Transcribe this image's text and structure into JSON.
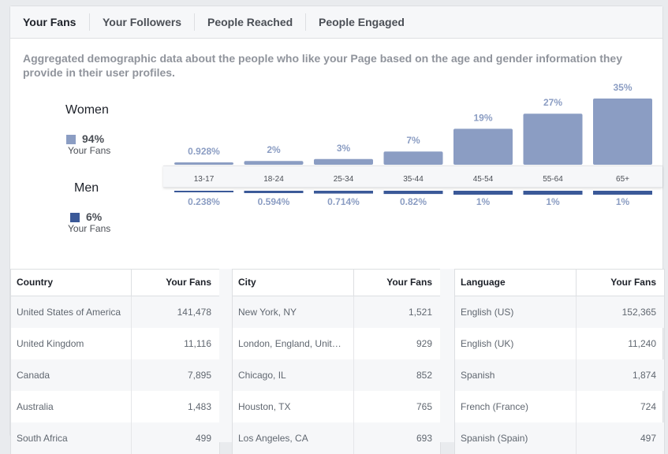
{
  "tabs": [
    "Your Fans",
    "Your Followers",
    "People Reached",
    "People Engaged"
  ],
  "description": "Aggregated demographic data about the people who like your Page based on the age and gender information they provide in their user profiles.",
  "legend": {
    "women": {
      "label": "Women",
      "pct": "94%",
      "sub": "Your Fans",
      "color": "#8b9dc3"
    },
    "men": {
      "label": "Men",
      "pct": "6%",
      "sub": "Your Fans",
      "color": "#3b5998"
    }
  },
  "chart_data": {
    "type": "bar",
    "categories": [
      "13-17",
      "18-24",
      "25-34",
      "35-44",
      "45-54",
      "55-64",
      "65+"
    ],
    "series": [
      {
        "name": "Women",
        "values": [
          0.928,
          2,
          3,
          7,
          19,
          27,
          35
        ],
        "labels": [
          "0.928%",
          "2%",
          "3%",
          "7%",
          "19%",
          "27%",
          "35%"
        ]
      },
      {
        "name": "Men",
        "values": [
          0.238,
          0.594,
          0.714,
          0.82,
          1,
          1,
          1
        ],
        "labels": [
          "0.238%",
          "0.594%",
          "0.714%",
          "0.82%",
          "1%",
          "1%",
          "1%"
        ]
      }
    ],
    "ylim": [
      0,
      35
    ]
  },
  "tables": [
    {
      "header": [
        "Country",
        "Your Fans"
      ],
      "rows": [
        [
          "United States of America",
          "141,478"
        ],
        [
          "United Kingdom",
          "11,116"
        ],
        [
          "Canada",
          "7,895"
        ],
        [
          "Australia",
          "1,483"
        ],
        [
          "South Africa",
          "499"
        ]
      ]
    },
    {
      "header": [
        "City",
        "Your Fans"
      ],
      "rows": [
        [
          "New York, NY",
          "1,521"
        ],
        [
          "London, England, Unit…",
          "929"
        ],
        [
          "Chicago, IL",
          "852"
        ],
        [
          "Houston, TX",
          "765"
        ],
        [
          "Los Angeles, CA",
          "693"
        ]
      ]
    },
    {
      "header": [
        "Language",
        "Your Fans"
      ],
      "rows": [
        [
          "English (US)",
          "152,365"
        ],
        [
          "English (UK)",
          "11,240"
        ],
        [
          "Spanish",
          "1,874"
        ],
        [
          "French (France)",
          "724"
        ],
        [
          "Spanish (Spain)",
          "497"
        ]
      ]
    }
  ]
}
